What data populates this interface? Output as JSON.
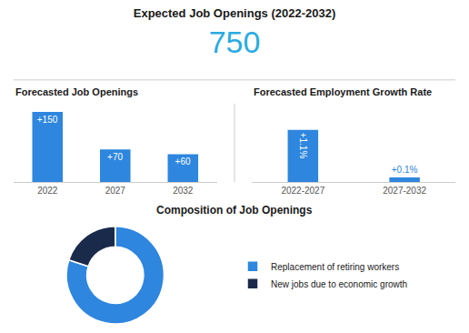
{
  "chart_data": [
    {
      "type": "indicator",
      "title": "Expected Job Openings (2022-2032)",
      "value": 750,
      "color": "#29ABE2"
    },
    {
      "type": "bar",
      "title": "Forecasted Job Openings",
      "categories": [
        "2022",
        "2027",
        "2032"
      ],
      "values": [
        150,
        70,
        60
      ],
      "value_labels": [
        "+150",
        "+70",
        "+60"
      ],
      "data_labels": true,
      "color": "#2E86DE",
      "ylim": [
        0,
        168
      ],
      "tick_labels": "x",
      "grid": false
    },
    {
      "type": "bar",
      "title": "Forecasted Employment Growth Rate",
      "categories": [
        "2022-2027",
        "2027-2032"
      ],
      "values": [
        1.1,
        0.1
      ],
      "value_labels": [
        "+1.1%",
        "+0.1%"
      ],
      "data_labels": true,
      "color": "#2E86DE",
      "ylim": [
        0,
        1.65
      ],
      "tick_labels": "x",
      "grid": false
    },
    {
      "type": "donut",
      "title": "Composition of Job Openings",
      "categories": [
        "Replacement of retiring workers",
        "New jobs due to economic growth"
      ],
      "values": [
        80,
        20
      ],
      "colors": [
        "#2E86DE",
        "#1A2A4A"
      ],
      "legend": "right"
    }
  ]
}
